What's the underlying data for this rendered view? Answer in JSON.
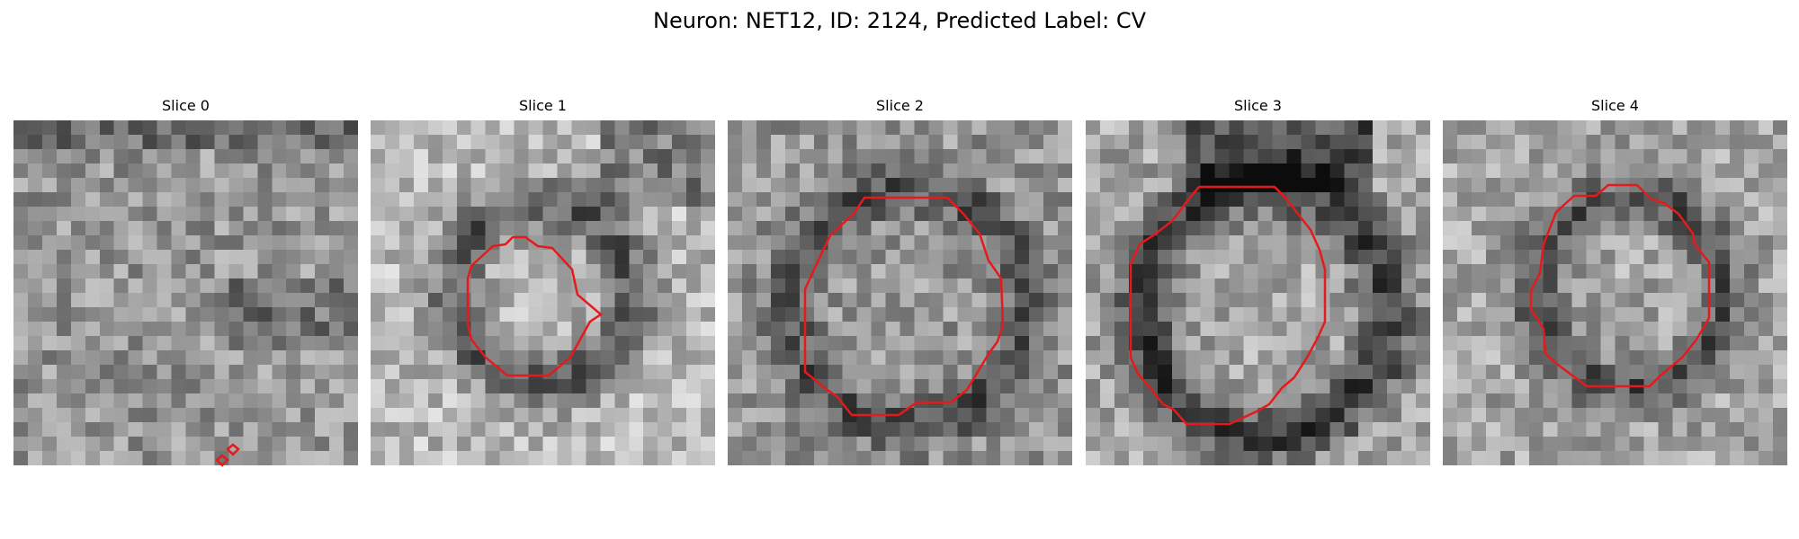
{
  "figure": {
    "title": "Neuron: NET12, ID: 2124, Predicted Label: CV"
  },
  "colors": {
    "background": "#ffffff",
    "contour": "#e41a1c",
    "colormap": "grayscale"
  },
  "slices": [
    {
      "title": "Slice 0"
    },
    {
      "title": "Slice 1"
    },
    {
      "title": "Slice 2"
    },
    {
      "title": "Slice 3"
    },
    {
      "title": "Slice 4"
    }
  ]
}
